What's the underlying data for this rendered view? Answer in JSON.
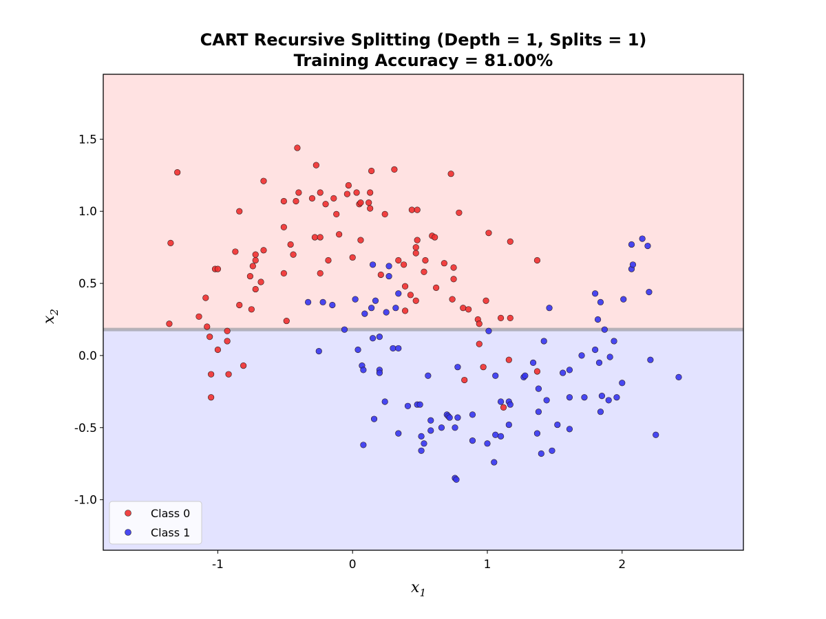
{
  "chart_data": {
    "type": "scatter",
    "title_line1": "CART Recursive Splitting (Depth = 1, Splits = 1)",
    "title_line2": "Training Accuracy = 81.00%",
    "xlabel": "x",
    "xlabel_sub": "1",
    "ylabel": "x",
    "ylabel_sub": "2",
    "xlim": [
      -1.85,
      2.9
    ],
    "ylim": [
      -1.35,
      1.95
    ],
    "xticks": [
      -1,
      0,
      1,
      2
    ],
    "xtick_labels": [
      "-1",
      "0",
      "1",
      "2"
    ],
    "yticks": [
      -1.0,
      -0.5,
      0.0,
      0.5,
      1.0,
      1.5
    ],
    "ytick_labels": [
      "-1.0",
      "-0.5",
      "0.0",
      "0.5",
      "1.0",
      "1.5"
    ],
    "split_threshold_x2": 0.18,
    "regions": [
      {
        "name": "upper",
        "predicted_class": "Class 0",
        "color": "#ffe2e2"
      },
      {
        "name": "lower",
        "predicted_class": "Class 1",
        "color": "#e3e3ff"
      }
    ],
    "split_line_color": "#a0a0a8",
    "legend_position": "lower-left",
    "series": [
      {
        "name": "Class 0",
        "color": "#f03030",
        "points": [
          [
            -1.35,
            0.78
          ],
          [
            -1.3,
            1.27
          ],
          [
            -1.36,
            0.22
          ],
          [
            -1.14,
            0.27
          ],
          [
            -1.09,
            0.4
          ],
          [
            -1.08,
            0.2
          ],
          [
            -1.06,
            0.13
          ],
          [
            -1.05,
            -0.13
          ],
          [
            -1.05,
            -0.29
          ],
          [
            -1.02,
            0.6
          ],
          [
            -1.0,
            0.6
          ],
          [
            -1.0,
            0.04
          ],
          [
            -0.93,
            0.17
          ],
          [
            -0.93,
            0.1
          ],
          [
            -0.92,
            -0.13
          ],
          [
            -0.87,
            0.72
          ],
          [
            -0.84,
            1.0
          ],
          [
            -0.84,
            0.35
          ],
          [
            -0.81,
            -0.07
          ],
          [
            -0.76,
            0.55
          ],
          [
            -0.75,
            0.32
          ],
          [
            -0.74,
            0.62
          ],
          [
            -0.72,
            0.7
          ],
          [
            -0.72,
            0.66
          ],
          [
            -0.72,
            0.46
          ],
          [
            -0.68,
            0.51
          ],
          [
            -0.66,
            0.73
          ],
          [
            -0.66,
            1.21
          ],
          [
            -0.51,
            1.07
          ],
          [
            -0.51,
            0.89
          ],
          [
            -0.51,
            0.57
          ],
          [
            -0.49,
            0.24
          ],
          [
            -0.46,
            0.77
          ],
          [
            -0.44,
            0.7
          ],
          [
            -0.42,
            1.07
          ],
          [
            -0.41,
            1.44
          ],
          [
            -0.4,
            1.13
          ],
          [
            -0.3,
            1.09
          ],
          [
            -0.28,
            0.82
          ],
          [
            -0.27,
            1.32
          ],
          [
            -0.24,
            0.82
          ],
          [
            -0.24,
            0.57
          ],
          [
            -0.24,
            1.13
          ],
          [
            -0.2,
            1.05
          ],
          [
            -0.18,
            0.66
          ],
          [
            -0.14,
            1.09
          ],
          [
            -0.12,
            0.98
          ],
          [
            -0.1,
            0.84
          ],
          [
            -0.04,
            1.12
          ],
          [
            -0.03,
            1.18
          ],
          [
            0.0,
            0.68
          ],
          [
            0.03,
            1.13
          ],
          [
            0.05,
            1.05
          ],
          [
            0.06,
            1.06
          ],
          [
            0.06,
            0.8
          ],
          [
            0.12,
            1.06
          ],
          [
            0.13,
            1.02
          ],
          [
            0.13,
            1.13
          ],
          [
            0.14,
            1.28
          ],
          [
            0.21,
            0.56
          ],
          [
            0.24,
            0.98
          ],
          [
            0.31,
            1.29
          ],
          [
            0.34,
            0.66
          ],
          [
            0.38,
            0.63
          ],
          [
            0.39,
            0.48
          ],
          [
            0.39,
            0.31
          ],
          [
            0.43,
            0.42
          ],
          [
            0.44,
            1.01
          ],
          [
            0.47,
            0.71
          ],
          [
            0.47,
            0.75
          ],
          [
            0.47,
            0.38
          ],
          [
            0.48,
            0.8
          ],
          [
            0.48,
            1.01
          ],
          [
            0.53,
            0.58
          ],
          [
            0.54,
            0.66
          ],
          [
            0.59,
            0.83
          ],
          [
            0.61,
            0.82
          ],
          [
            0.62,
            0.47
          ],
          [
            0.68,
            0.64
          ],
          [
            0.73,
            1.26
          ],
          [
            0.74,
            0.39
          ],
          [
            0.75,
            0.53
          ],
          [
            0.75,
            0.61
          ],
          [
            0.79,
            0.99
          ],
          [
            0.82,
            0.33
          ],
          [
            0.83,
            -0.17
          ],
          [
            0.86,
            0.32
          ],
          [
            0.93,
            0.25
          ],
          [
            0.94,
            0.22
          ],
          [
            0.94,
            0.08
          ],
          [
            0.97,
            -0.08
          ],
          [
            0.99,
            0.38
          ],
          [
            1.01,
            0.85
          ],
          [
            1.1,
            0.26
          ],
          [
            1.12,
            -0.36
          ],
          [
            1.16,
            -0.03
          ],
          [
            1.17,
            0.26
          ],
          [
            1.17,
            0.79
          ],
          [
            1.37,
            0.66
          ],
          [
            1.37,
            -0.11
          ]
        ]
      },
      {
        "name": "Class 1",
        "color": "#3535f0",
        "points": [
          [
            -0.33,
            0.37
          ],
          [
            -0.25,
            0.03
          ],
          [
            -0.22,
            0.37
          ],
          [
            -0.15,
            0.35
          ],
          [
            -0.06,
            0.18
          ],
          [
            0.02,
            0.39
          ],
          [
            0.04,
            0.04
          ],
          [
            0.07,
            -0.07
          ],
          [
            0.08,
            -0.1
          ],
          [
            0.08,
            -0.62
          ],
          [
            0.09,
            0.29
          ],
          [
            0.14,
            0.33
          ],
          [
            0.15,
            0.63
          ],
          [
            0.15,
            0.12
          ],
          [
            0.16,
            -0.44
          ],
          [
            0.17,
            0.38
          ],
          [
            0.2,
            0.13
          ],
          [
            0.2,
            -0.1
          ],
          [
            0.2,
            -0.12
          ],
          [
            0.24,
            -0.32
          ],
          [
            0.25,
            0.3
          ],
          [
            0.27,
            0.62
          ],
          [
            0.27,
            0.55
          ],
          [
            0.3,
            0.05
          ],
          [
            0.32,
            0.33
          ],
          [
            0.34,
            0.43
          ],
          [
            0.34,
            0.05
          ],
          [
            0.34,
            -0.54
          ],
          [
            0.41,
            -0.35
          ],
          [
            0.48,
            -0.34
          ],
          [
            0.5,
            -0.34
          ],
          [
            0.51,
            -0.56
          ],
          [
            0.51,
            -0.66
          ],
          [
            0.53,
            -0.61
          ],
          [
            0.56,
            -0.14
          ],
          [
            0.58,
            -0.45
          ],
          [
            0.58,
            -0.52
          ],
          [
            0.66,
            -0.5
          ],
          [
            0.7,
            -0.41
          ],
          [
            0.71,
            -0.42
          ],
          [
            0.72,
            -0.43
          ],
          [
            0.76,
            -0.5
          ],
          [
            0.76,
            -0.85
          ],
          [
            0.77,
            -0.86
          ],
          [
            0.78,
            -0.43
          ],
          [
            0.78,
            -0.08
          ],
          [
            0.89,
            -0.41
          ],
          [
            0.89,
            -0.59
          ],
          [
            1.0,
            -0.61
          ],
          [
            1.01,
            0.17
          ],
          [
            1.05,
            -0.74
          ],
          [
            1.06,
            -0.14
          ],
          [
            1.06,
            -0.55
          ],
          [
            1.1,
            -0.56
          ],
          [
            1.1,
            -0.32
          ],
          [
            1.16,
            -0.32
          ],
          [
            1.16,
            -0.48
          ],
          [
            1.17,
            -0.34
          ],
          [
            1.27,
            -0.15
          ],
          [
            1.28,
            -0.14
          ],
          [
            1.34,
            -0.05
          ],
          [
            1.37,
            -0.54
          ],
          [
            1.38,
            -0.39
          ],
          [
            1.38,
            -0.23
          ],
          [
            1.4,
            -0.68
          ],
          [
            1.42,
            0.1
          ],
          [
            1.44,
            -0.31
          ],
          [
            1.46,
            0.33
          ],
          [
            1.48,
            -0.66
          ],
          [
            1.52,
            -0.48
          ],
          [
            1.56,
            -0.12
          ],
          [
            1.61,
            -0.1
          ],
          [
            1.61,
            -0.29
          ],
          [
            1.61,
            -0.51
          ],
          [
            1.7,
            0.0
          ],
          [
            1.72,
            -0.29
          ],
          [
            1.8,
            0.04
          ],
          [
            1.8,
            0.43
          ],
          [
            1.82,
            0.25
          ],
          [
            1.83,
            -0.05
          ],
          [
            1.84,
            -0.39
          ],
          [
            1.84,
            0.37
          ],
          [
            1.85,
            -0.28
          ],
          [
            1.87,
            0.18
          ],
          [
            1.9,
            -0.31
          ],
          [
            1.91,
            -0.01
          ],
          [
            1.94,
            0.1
          ],
          [
            1.96,
            -0.29
          ],
          [
            2.0,
            -0.19
          ],
          [
            2.01,
            0.39
          ],
          [
            2.07,
            0.77
          ],
          [
            2.07,
            0.6
          ],
          [
            2.08,
            0.63
          ],
          [
            2.15,
            0.81
          ],
          [
            2.19,
            0.76
          ],
          [
            2.2,
            0.44
          ],
          [
            2.21,
            -0.03
          ],
          [
            2.25,
            -0.55
          ],
          [
            2.42,
            -0.15
          ]
        ]
      }
    ]
  }
}
